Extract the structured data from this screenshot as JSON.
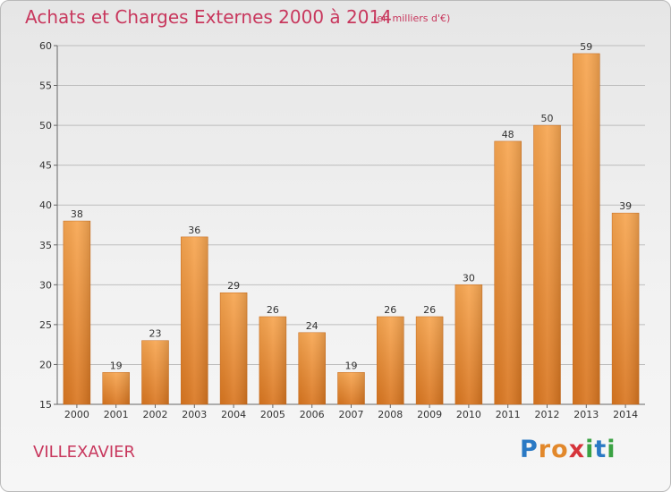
{
  "header": {
    "title": "Achats et Charges Externes 2000 à 2014",
    "subtitle": "(en milliers d'€)"
  },
  "footer": {
    "town": "VILLEXAVIER",
    "logo": [
      "P",
      "r",
      "o",
      "x",
      "i",
      "t",
      "i"
    ]
  },
  "colors": {
    "title": "#c8375d",
    "bar_light": "#f7a651",
    "bar_dark": "#d97620",
    "grid": "#bcbcbc"
  },
  "chart_data": {
    "type": "bar",
    "title": "Achats et Charges Externes 2000 à 2014",
    "subtitle": "(en milliers d'€)",
    "categories": [
      "2000",
      "2001",
      "2002",
      "2003",
      "2004",
      "2005",
      "2006",
      "2007",
      "2008",
      "2009",
      "2010",
      "2011",
      "2012",
      "2013",
      "2014"
    ],
    "values": [
      38,
      19,
      23,
      36,
      29,
      26,
      24,
      19,
      26,
      26,
      30,
      48,
      50,
      59,
      39
    ],
    "ylim": [
      15,
      60
    ],
    "yticks": [
      15,
      20,
      25,
      30,
      35,
      40,
      45,
      50,
      55,
      60
    ],
    "grid": true,
    "data_labels": true
  }
}
